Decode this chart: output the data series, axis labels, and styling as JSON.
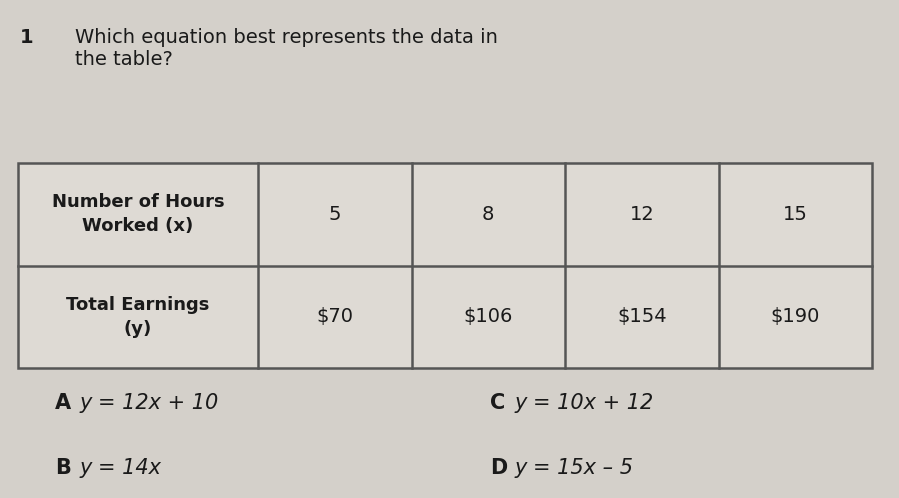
{
  "question_number": "1",
  "question_text_line1": "Which equation best represents the data in",
  "question_text_line2": "the table?",
  "row1_header": "Number of Hours\nWorked (x)",
  "row2_header": "Total Earnings\n(y)",
  "col_values_x": [
    "5",
    "8",
    "12",
    "15"
  ],
  "col_values_y": [
    "$70",
    "$106",
    "$154",
    "$190"
  ],
  "answer_A_label": "A",
  "answer_A_text": "y = 12x + 10",
  "answer_B_label": "B",
  "answer_B_text": "y = 14x",
  "answer_C_label": "C",
  "answer_C_text": "y = 10x + 12",
  "answer_D_label": "D",
  "answer_D_text": "y = 15x – 5",
  "bg_color": "#d4d0ca",
  "table_cell_color": "#dedad4",
  "text_color": "#1a1a1a",
  "table_line_color": "#555555"
}
